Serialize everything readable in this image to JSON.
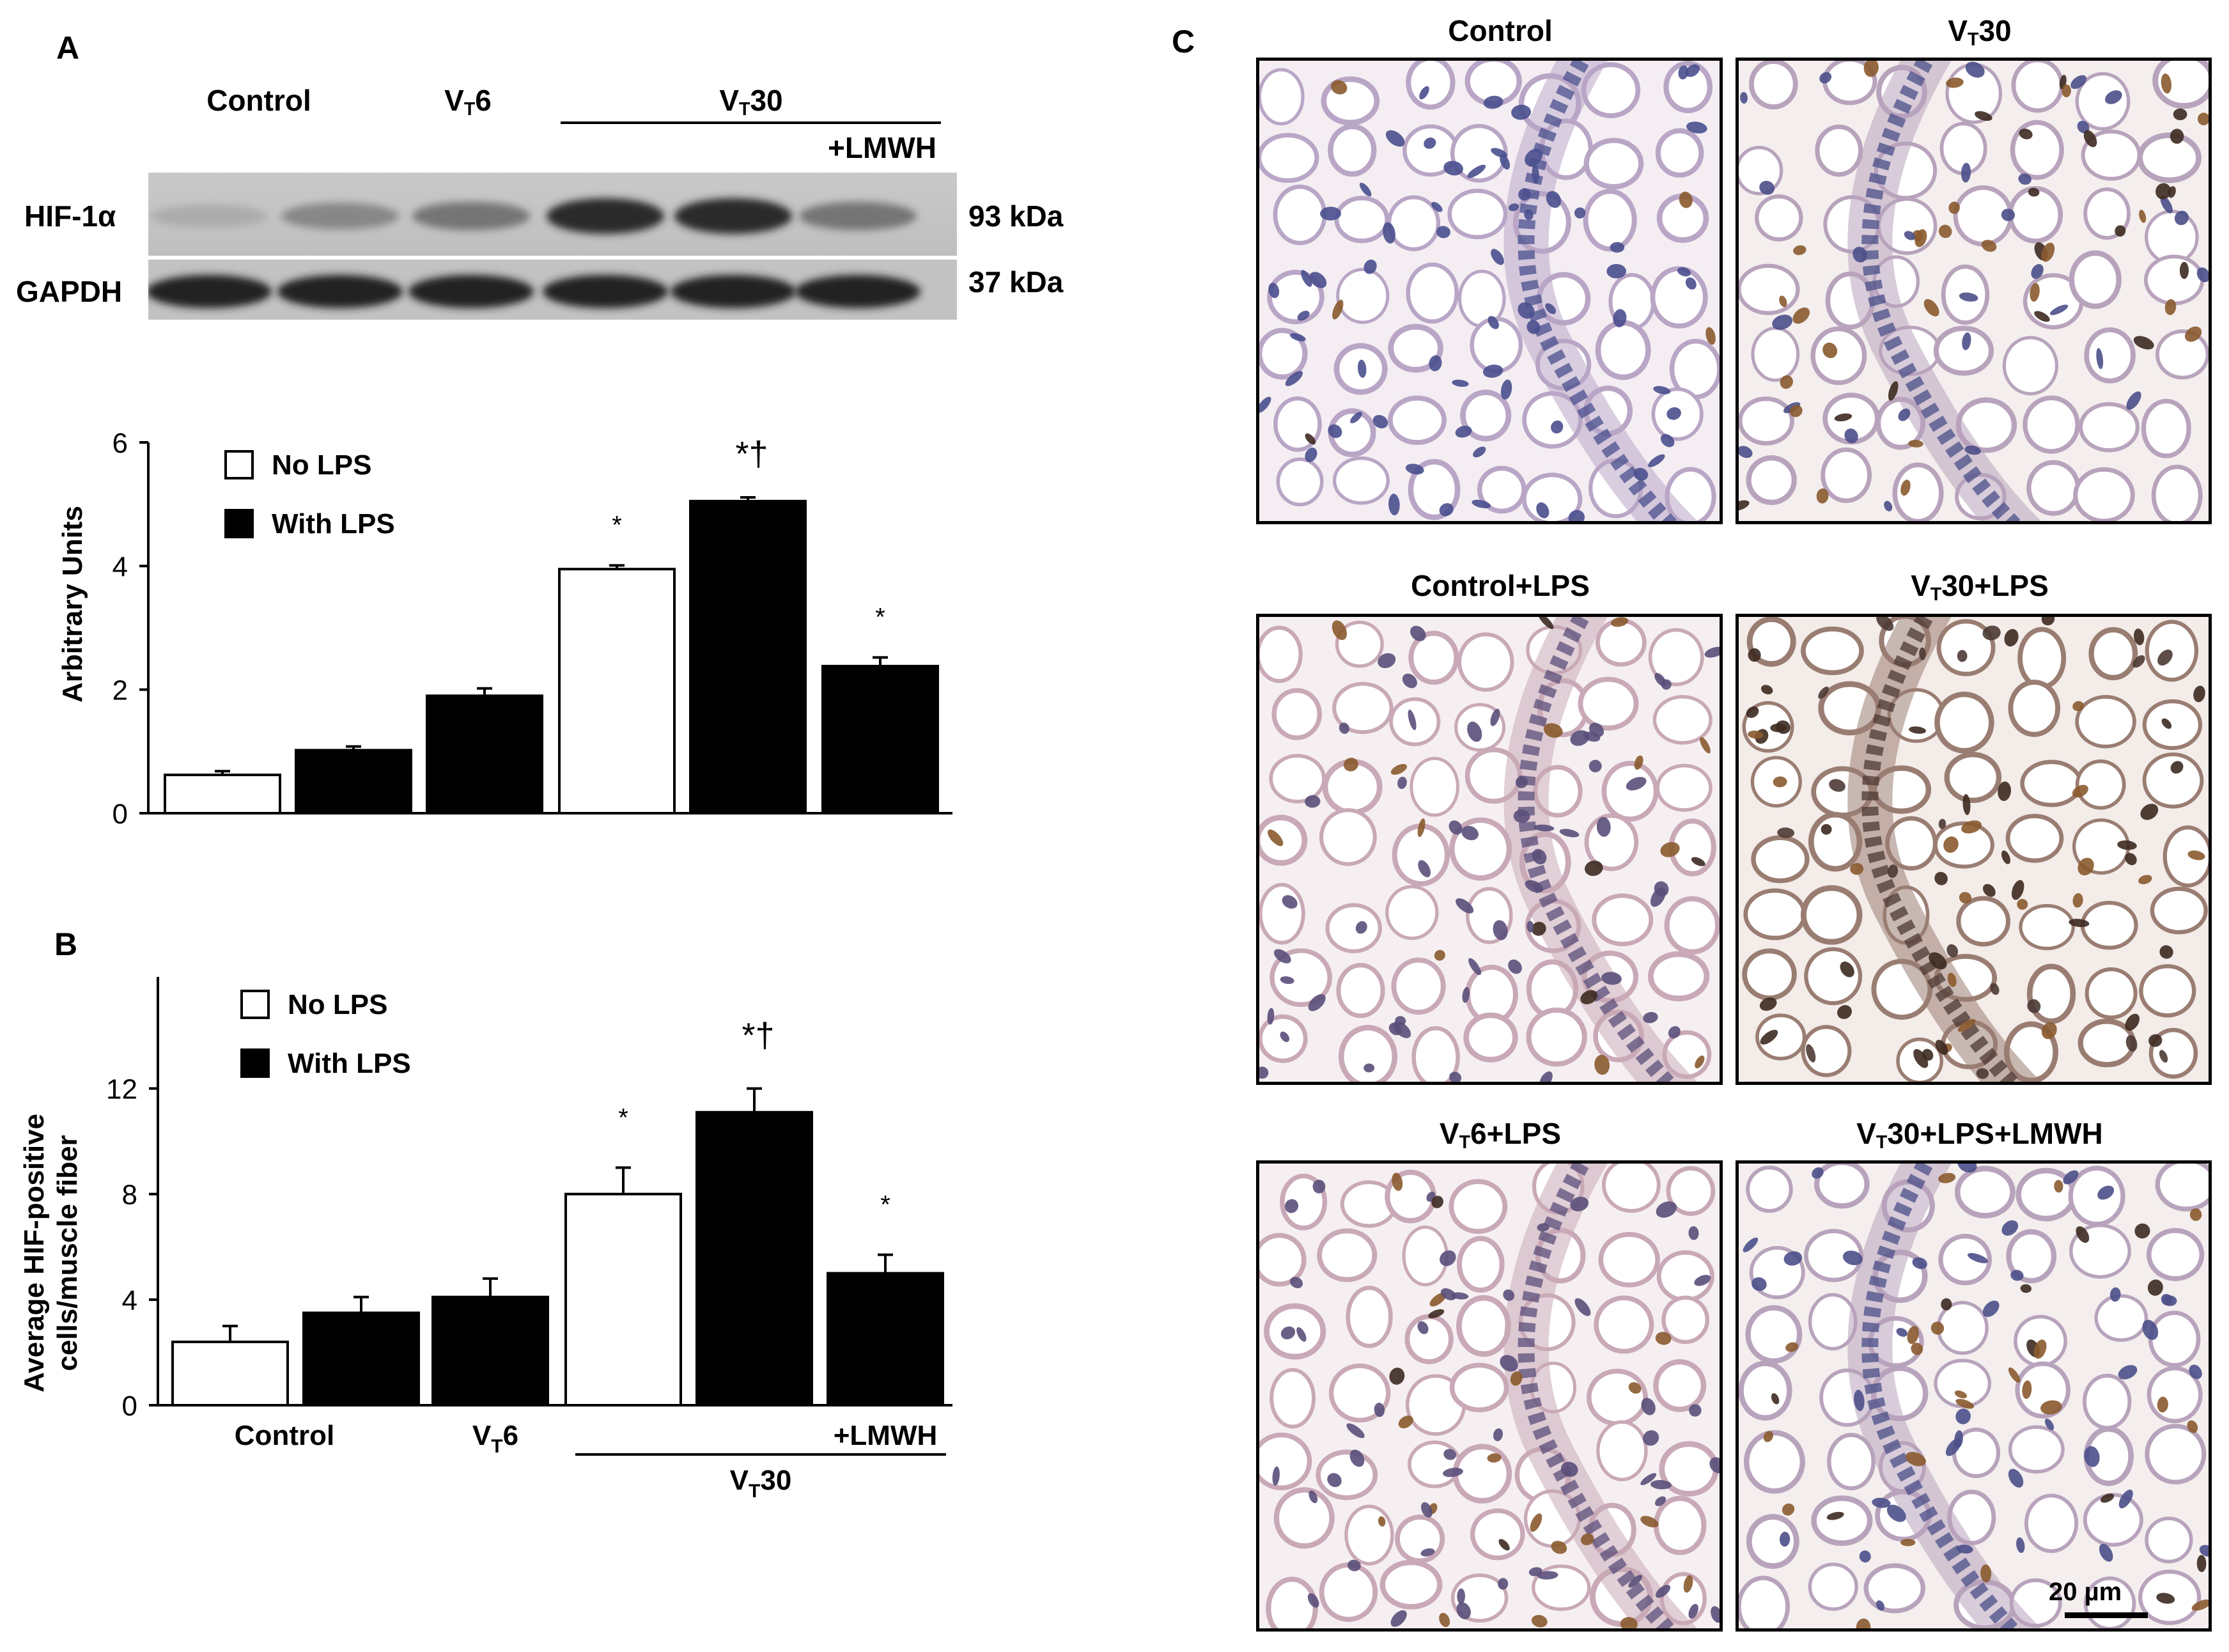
{
  "panels": {
    "A": {
      "letter": "A",
      "blot": {
        "groups": [
          {
            "text": "Control",
            "sub": "",
            "tail": ""
          },
          {
            "text": "V",
            "sub": "T",
            "tail": "6"
          },
          {
            "text": "V",
            "sub": "T",
            "tail": "30"
          }
        ],
        "lmwh_label": "+LMWH",
        "rows": [
          {
            "protein": "HIF-1α",
            "size": "93 kDa",
            "intensities": [
              0.15,
              0.35,
              0.45,
              0.85,
              0.85,
              0.45
            ]
          },
          {
            "protein": "GAPDH",
            "size": "37 kDa",
            "intensities": [
              0.9,
              0.9,
              0.9,
              0.9,
              0.9,
              0.9
            ]
          }
        ]
      }
    },
    "B": {
      "letter": "B"
    },
    "C": {
      "letter": "C",
      "images": [
        {
          "text": "Control",
          "sub": "",
          "tail": "",
          "stain": "blue"
        },
        {
          "text": "V",
          "sub": "T",
          "tail": "30",
          "stain": "brown-epi"
        },
        {
          "text": "Control+LPS",
          "sub": "",
          "tail": "",
          "stain": "light"
        },
        {
          "text": "V",
          "sub": "T",
          "tail": "30+LPS",
          "stain": "brown-heavy"
        },
        {
          "text": "V",
          "sub": "T",
          "tail": "6+LPS",
          "stain": "light"
        },
        {
          "text": "V",
          "sub": "T",
          "tail": "30+LPS+LMWH",
          "stain": "brown-epi"
        }
      ],
      "scale_bar": "20 µm"
    }
  },
  "chart_data": [
    {
      "type": "bar",
      "panel": "A",
      "title": "",
      "xlabel": "",
      "ylabel": "Arbitrary Units",
      "ylim": [
        0,
        6
      ],
      "yticks": [
        0,
        2,
        4,
        6
      ],
      "grid": false,
      "legend_position": "top-left",
      "legend": [
        {
          "name": "No LPS",
          "fill": "#ffffff"
        },
        {
          "name": "With LPS",
          "fill": "#000000"
        }
      ],
      "bars": [
        {
          "value": 0.62,
          "error": 0.06,
          "fill": "#ffffff",
          "annotation": ""
        },
        {
          "value": 1.02,
          "error": 0.06,
          "fill": "#000000",
          "annotation": ""
        },
        {
          "value": 1.9,
          "error": 0.12,
          "fill": "#000000",
          "annotation": ""
        },
        {
          "value": 3.95,
          "error": 0.06,
          "fill": "#ffffff",
          "annotation": "*"
        },
        {
          "value": 5.05,
          "error": 0.06,
          "fill": "#000000",
          "annotation": "*†"
        },
        {
          "value": 2.38,
          "error": 0.14,
          "fill": "#000000",
          "annotation": "*"
        }
      ]
    },
    {
      "type": "bar",
      "panel": "B",
      "title": "",
      "xlabel": "",
      "ylabel_lines": [
        "Average HIF-positive",
        "cells/muscle fiber"
      ],
      "ylim": [
        0,
        14
      ],
      "yticks": [
        0,
        4,
        8,
        12
      ],
      "grid": false,
      "legend_position": "top-left",
      "legend": [
        {
          "name": "No LPS",
          "fill": "#ffffff"
        },
        {
          "name": "With LPS",
          "fill": "#000000"
        }
      ],
      "bars": [
        {
          "value": 2.4,
          "error": 0.6,
          "fill": "#ffffff",
          "annotation": ""
        },
        {
          "value": 3.5,
          "error": 0.6,
          "fill": "#000000",
          "annotation": ""
        },
        {
          "value": 4.1,
          "error": 0.7,
          "fill": "#000000",
          "annotation": ""
        },
        {
          "value": 8.0,
          "error": 1.0,
          "fill": "#ffffff",
          "annotation": "*"
        },
        {
          "value": 11.1,
          "error": 0.9,
          "fill": "#000000",
          "annotation": "*†"
        },
        {
          "value": 5.0,
          "error": 0.7,
          "fill": "#000000",
          "annotation": "*"
        }
      ],
      "group_labels": [
        {
          "text": "Control",
          "sub": "",
          "tail": ""
        },
        {
          "text": "V",
          "sub": "T",
          "tail": "6"
        },
        {
          "text": "+LMWH",
          "sub": "",
          "tail": ""
        },
        {
          "text": "V",
          "sub": "T",
          "tail": "30"
        }
      ]
    }
  ]
}
